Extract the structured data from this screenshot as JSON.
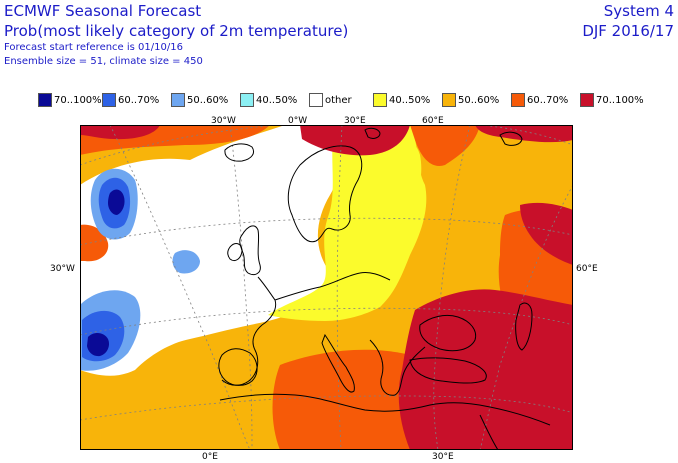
{
  "header": {
    "title": "ECMWF Seasonal Forecast",
    "subtitle": "Prob(most likely category of 2m temperature)",
    "start_ref": "Forecast start reference is 01/10/16",
    "ensemble": "Ensemble size = 51, climate size = 450",
    "system": "System 4",
    "season": "DJF 2016/17"
  },
  "legend": [
    {
      "label": "70..100%",
      "color": "#0a0a96"
    },
    {
      "label": "60..70%",
      "color": "#2e62e6"
    },
    {
      "label": "50..60%",
      "color": "#6ea6f0"
    },
    {
      "label": "40..50%",
      "color": "#8cf0f4"
    },
    {
      "label": "other",
      "color": "#ffffff"
    },
    {
      "label": "40..50%",
      "color": "#fbfb2c"
    },
    {
      "label": "50..60%",
      "color": "#f8b40a"
    },
    {
      "label": "60..70%",
      "color": "#f65a08"
    },
    {
      "label": "70..100%",
      "color": "#c8102a"
    }
  ],
  "grid_labels": {
    "top": [
      "30°W",
      "0°W",
      "30°E",
      "60°E"
    ],
    "bottom": [
      "0°E",
      "30°E"
    ],
    "left": "30°W",
    "right": "60°E"
  },
  "colors": {
    "header_text": "#1c1cc8",
    "coast": "#000000",
    "graticule": "#808080"
  }
}
